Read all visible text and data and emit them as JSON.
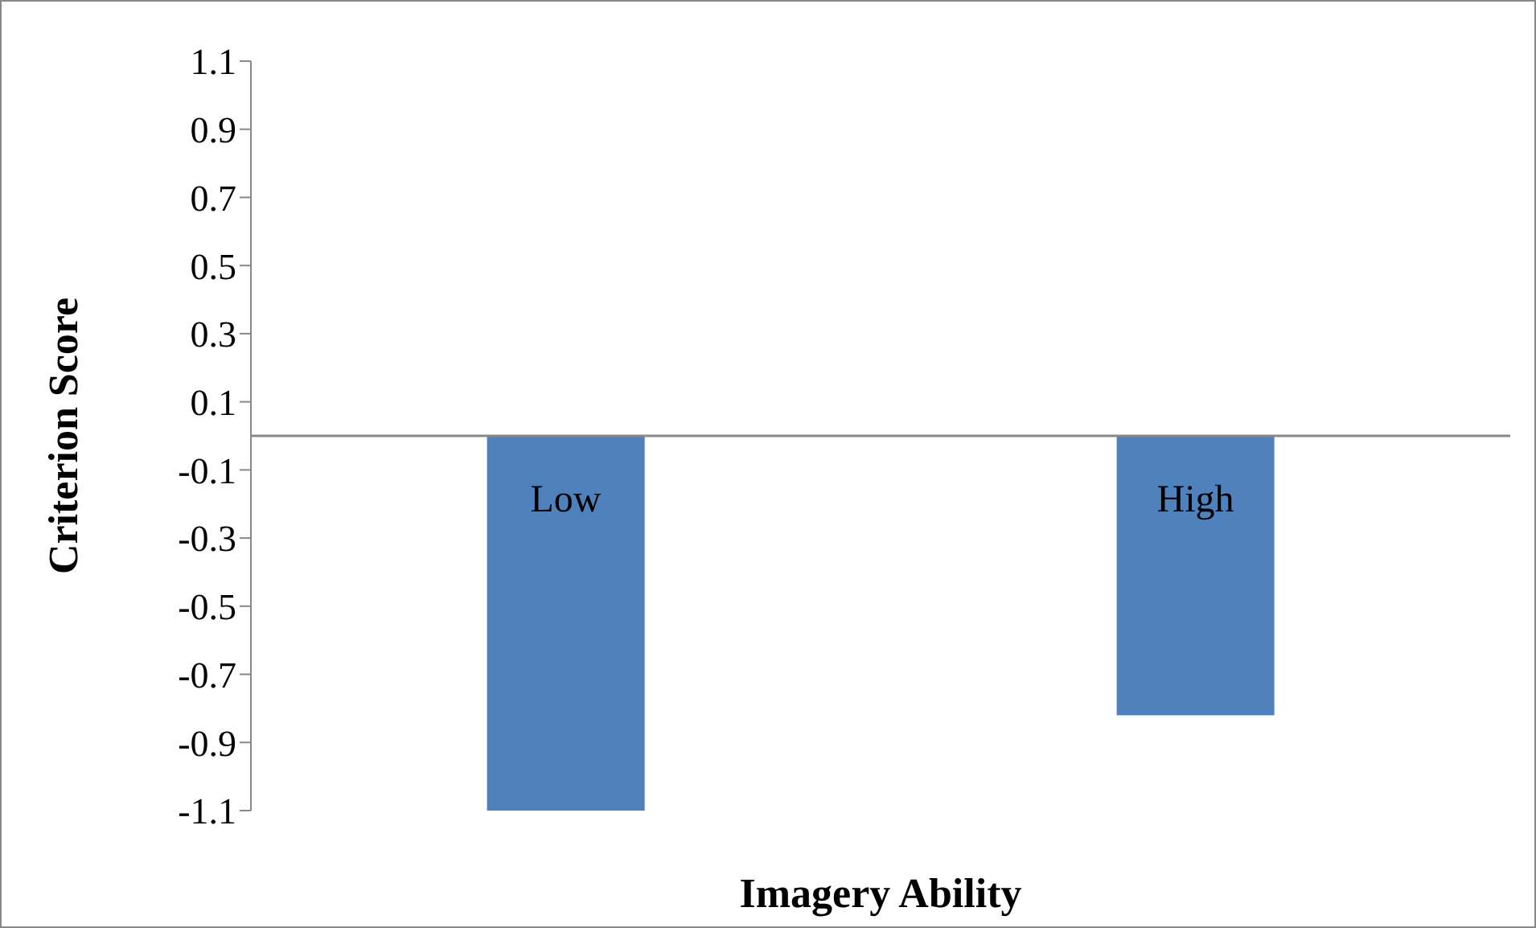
{
  "chart_data": {
    "type": "bar",
    "xlabel": "Imagery Ability",
    "ylabel": "Criterion Score",
    "categories": [
      "Low",
      "High"
    ],
    "values": [
      -1.1,
      -0.82
    ],
    "color": "#4f81bd",
    "ylim": [
      -1.1,
      1.1
    ],
    "yticks": [
      -1.1,
      -0.9,
      -0.7,
      -0.5,
      -0.3,
      -0.1,
      0.1,
      0.3,
      0.5,
      0.7,
      0.9,
      1.1
    ]
  }
}
